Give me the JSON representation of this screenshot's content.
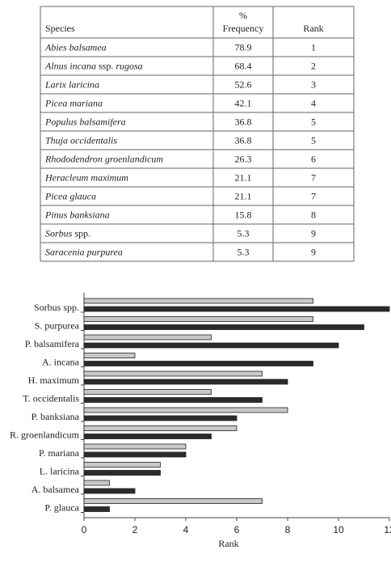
{
  "table": {
    "header": [
      "Species",
      "%",
      "Frequency",
      "Rank"
    ],
    "rows": [
      {
        "species": [
          {
            "text": "Abies balsamea",
            "italic": true
          }
        ],
        "frequency": 78.9,
        "rank": 1
      },
      {
        "species": [
          {
            "text": "Alnus incana",
            "italic": true
          },
          {
            "text": " ssp. ",
            "italic": false
          },
          {
            "text": "rugosa",
            "italic": true
          }
        ],
        "frequency": 68.4,
        "rank": 2
      },
      {
        "species": [
          {
            "text": "Larix laricina",
            "italic": true
          }
        ],
        "frequency": 52.6,
        "rank": 3
      },
      {
        "species": [
          {
            "text": "Picea mariana",
            "italic": true
          }
        ],
        "frequency": 42.1,
        "rank": 4
      },
      {
        "species": [
          {
            "text": "Populus balsamifera",
            "italic": true
          }
        ],
        "frequency": 36.8,
        "rank": 5
      },
      {
        "species": [
          {
            "text": "Thuja occidentalis",
            "italic": true
          }
        ],
        "frequency": 36.8,
        "rank": 5
      },
      {
        "species": [
          {
            "text": "Rhododendron groenlandicum",
            "italic": true
          }
        ],
        "frequency": 26.3,
        "rank": 6
      },
      {
        "species": [
          {
            "text": "Heracleum maximum",
            "italic": true
          }
        ],
        "frequency": 21.1,
        "rank": 7
      },
      {
        "species": [
          {
            "text": "Picea glauca",
            "italic": true
          }
        ],
        "frequency": 21.1,
        "rank": 7
      },
      {
        "species": [
          {
            "text": "Pinus banksiana",
            "italic": true
          }
        ],
        "frequency": 15.8,
        "rank": 8
      },
      {
        "species": [
          {
            "text": "Sorbus",
            "italic": true
          },
          {
            "text": " spp.",
            "italic": false
          }
        ],
        "frequency": 5.3,
        "rank": 9
      },
      {
        "species": [
          {
            "text": "Saracenia purpurea",
            "italic": true
          }
        ],
        "frequency": 5.3,
        "rank": 9
      }
    ]
  },
  "chart_data": {
    "type": "bar",
    "orientation": "horizontal",
    "categories": [
      "Sorbus spp.",
      "S. purpurea",
      "P. balsamifera",
      "A. incana",
      "H. maximum",
      "T. occidentalis",
      "P. banksiana",
      "R. groenlandicum",
      "P. mariana",
      "L. laricina",
      "A. balsamea",
      "P. glauca"
    ],
    "series": [
      {
        "color": "#c8c8c8",
        "values": [
          9,
          9,
          5,
          2,
          7,
          5,
          8,
          6,
          4,
          3,
          1,
          7
        ]
      },
      {
        "color": "#2b2b2b",
        "values": [
          12,
          11,
          10,
          9,
          8,
          7,
          6,
          5,
          4,
          3,
          2,
          1
        ]
      }
    ],
    "xlabel": "Rank",
    "xlim": [
      0,
      12
    ],
    "xticks": [
      0,
      2,
      4,
      6,
      8,
      10,
      12
    ]
  }
}
